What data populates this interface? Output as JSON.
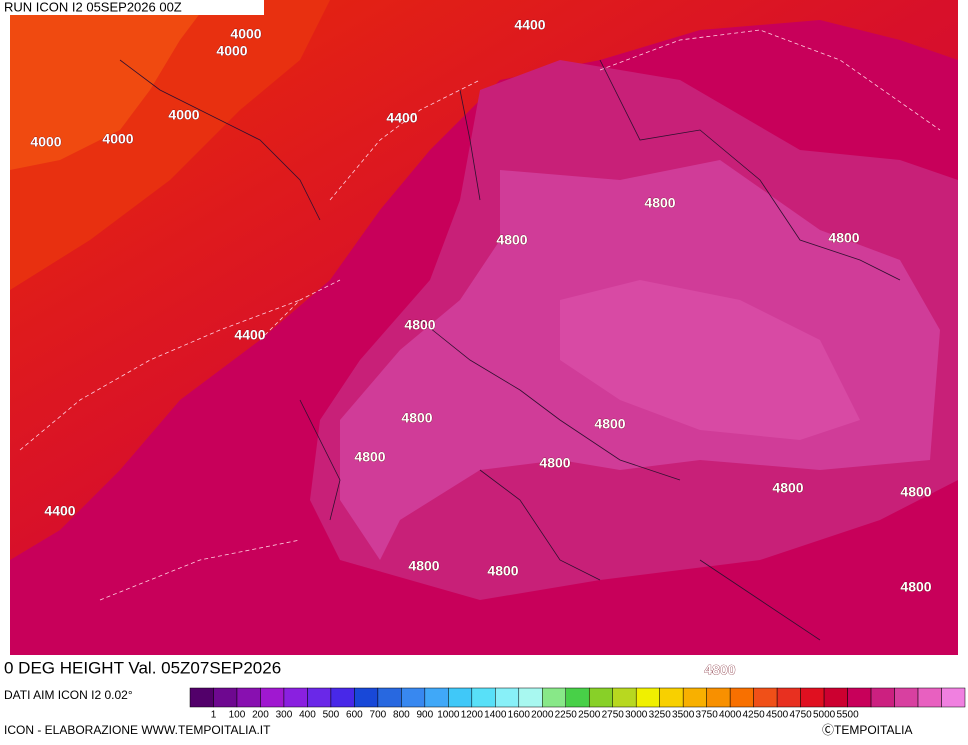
{
  "header": {
    "run": "RUN ICON I2 05SEP2026 00Z"
  },
  "map": {
    "contour_labels": [
      "4400",
      "4000",
      "4000",
      "4000",
      "4400",
      "4000",
      "4000",
      "4800",
      "4800",
      "4800",
      "4400",
      "4800",
      "4800",
      "4800",
      "4800",
      "4800",
      "4800",
      "4800",
      "4400",
      "4800",
      "4800",
      "4800",
      "4800"
    ]
  },
  "footer": {
    "title": "0 DEG HEIGHT Val. 05Z07SEP2026",
    "source": "DATI AIM ICON I2 0.02°",
    "credit": "ICON - ELABORAZIONE WWW.TEMPOITALIA.IT",
    "copyright": "ⒸTEMPOITALIA"
  },
  "colorbar": {
    "labels": [
      "1",
      "100",
      "200",
      "300",
      "400",
      "500",
      "600",
      "700",
      "800",
      "900",
      "1000",
      "1200",
      "1400",
      "1600",
      "2000",
      "2250",
      "2500",
      "2750",
      "3000",
      "3250",
      "3500",
      "3750",
      "4000",
      "4250",
      "4500",
      "4750",
      "5000",
      "5500"
    ],
    "colors": [
      "#52006a",
      "#6e0890",
      "#8810b0",
      "#a018d0",
      "#8a20e0",
      "#6a28e8",
      "#4828e8",
      "#1848d8",
      "#2868e0",
      "#3888f0",
      "#40a8f8",
      "#40c8f8",
      "#58e0f8",
      "#88f0f8",
      "#a8f8f0",
      "#88e888",
      "#48d048",
      "#88d028",
      "#b8d820",
      "#f0f000",
      "#f8d000",
      "#f8b000",
      "#f89000",
      "#f87000",
      "#f05018",
      "#e83020",
      "#e01020",
      "#cc0030",
      "#c8005a",
      "#cc2080",
      "#d840a0",
      "#e860c0",
      "#f080e0"
    ]
  }
}
